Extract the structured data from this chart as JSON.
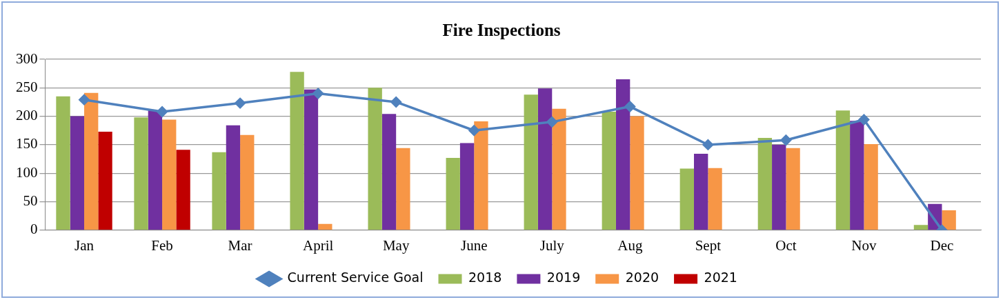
{
  "chart_data": {
    "type": "bar",
    "title": "Fire Inspections",
    "categories": [
      "Jan",
      "Feb",
      "Mar",
      "April",
      "May",
      "June",
      "July",
      "Aug",
      "Sept",
      "Oct",
      "Nov",
      "Dec"
    ],
    "series": [
      {
        "name": "2018",
        "color": "#9bbb59",
        "values": [
          235,
          198,
          137,
          278,
          250,
          127,
          238,
          208,
          108,
          162,
          210,
          9
        ]
      },
      {
        "name": "2019",
        "color": "#7030a0",
        "values": [
          200,
          210,
          184,
          247,
          204,
          153,
          249,
          265,
          134,
          150,
          192,
          46
        ]
      },
      {
        "name": "2020",
        "color": "#f79646",
        "values": [
          241,
          194,
          167,
          11,
          144,
          191,
          213,
          200,
          109,
          144,
          151,
          35
        ]
      },
      {
        "name": "2021",
        "color": "#c00000",
        "values": [
          173,
          141,
          null,
          null,
          null,
          null,
          null,
          null,
          null,
          null,
          null,
          null
        ]
      },
      {
        "name": "Current Service Goal",
        "type": "line",
        "color": "#4f81bd",
        "marker": "diamond",
        "values": [
          229,
          208,
          223,
          240,
          225,
          175,
          190,
          217,
          150,
          158,
          194,
          0
        ]
      }
    ],
    "ylim": [
      0,
      300
    ],
    "yticks": [
      0,
      50,
      100,
      150,
      200,
      250,
      300
    ],
    "grid": "y",
    "legend": "bottom"
  }
}
